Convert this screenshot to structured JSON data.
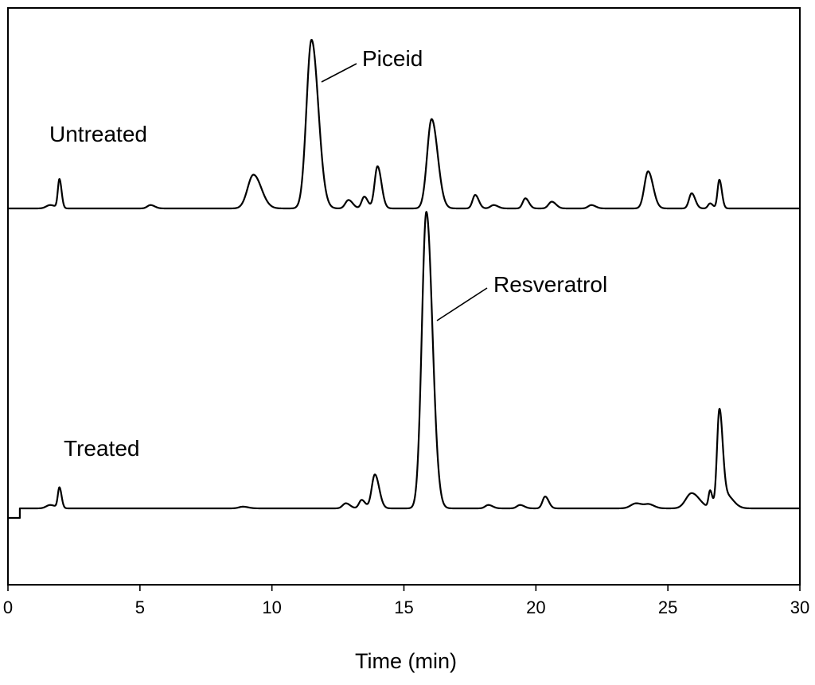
{
  "chart_data": {
    "type": "line",
    "title": "",
    "xlabel": "Time (min)",
    "ylabel": "",
    "xlim": [
      0,
      30
    ],
    "x_ticks": [
      0,
      5,
      10,
      15,
      20,
      25,
      30
    ],
    "y_ticks": [],
    "grid": false,
    "legend": "none",
    "line_color": "#000000",
    "series": [
      {
        "label": "Untreated",
        "baseline": 0.0,
        "peaks": [
          {
            "t": 1.6,
            "h": 0.02,
            "w": 0.15
          },
          {
            "t": 1.95,
            "h": 0.17,
            "w": 0.06
          },
          {
            "t": 5.4,
            "h": 0.02,
            "w": 0.12
          },
          {
            "t": 9.3,
            "h": 0.2,
            "w": 0.22
          },
          {
            "t": 11.5,
            "h": 1.0,
            "w": 0.19
          },
          {
            "t": 12.9,
            "h": 0.05,
            "w": 0.12
          },
          {
            "t": 13.5,
            "h": 0.07,
            "w": 0.1
          },
          {
            "t": 14.0,
            "h": 0.25,
            "w": 0.11
          },
          {
            "t": 16.05,
            "h": 0.53,
            "w": 0.17
          },
          {
            "t": 17.7,
            "h": 0.08,
            "w": 0.1
          },
          {
            "t": 18.4,
            "h": 0.02,
            "w": 0.12
          },
          {
            "t": 19.6,
            "h": 0.06,
            "w": 0.1
          },
          {
            "t": 20.6,
            "h": 0.04,
            "w": 0.12
          },
          {
            "t": 22.1,
            "h": 0.02,
            "w": 0.12
          },
          {
            "t": 24.25,
            "h": 0.22,
            "w": 0.14
          },
          {
            "t": 25.9,
            "h": 0.09,
            "w": 0.1
          },
          {
            "t": 26.6,
            "h": 0.03,
            "w": 0.08
          },
          {
            "t": 26.95,
            "h": 0.17,
            "w": 0.07
          }
        ]
      },
      {
        "label": "Treated",
        "baseline": 0.0,
        "peaks": [
          {
            "t": 1.6,
            "h": 0.02,
            "w": 0.15
          },
          {
            "t": 1.95,
            "h": 0.12,
            "w": 0.06
          },
          {
            "t": 8.9,
            "h": 0.01,
            "w": 0.15
          },
          {
            "t": 12.8,
            "h": 0.03,
            "w": 0.12
          },
          {
            "t": 13.4,
            "h": 0.05,
            "w": 0.1
          },
          {
            "t": 13.9,
            "h": 0.2,
            "w": 0.12
          },
          {
            "t": 15.85,
            "h": 1.75,
            "w": 0.17
          },
          {
            "t": 18.2,
            "h": 0.02,
            "w": 0.12
          },
          {
            "t": 19.4,
            "h": 0.02,
            "w": 0.12
          },
          {
            "t": 20.35,
            "h": 0.07,
            "w": 0.1
          },
          {
            "t": 23.8,
            "h": 0.03,
            "w": 0.2
          },
          {
            "t": 24.3,
            "h": 0.02,
            "w": 0.15
          },
          {
            "t": 25.9,
            "h": 0.09,
            "w": 0.22
          },
          {
            "t": 26.6,
            "h": 0.1,
            "w": 0.06
          },
          {
            "t": 26.95,
            "h": 0.55,
            "w": 0.09
          },
          {
            "t": 27.2,
            "h": 0.08,
            "w": 0.2
          }
        ]
      }
    ],
    "annotations": [
      {
        "text": "Piceid",
        "series": 0,
        "t": 11.5
      },
      {
        "text": "Resveratrol",
        "series": 1,
        "t": 15.85
      }
    ]
  }
}
